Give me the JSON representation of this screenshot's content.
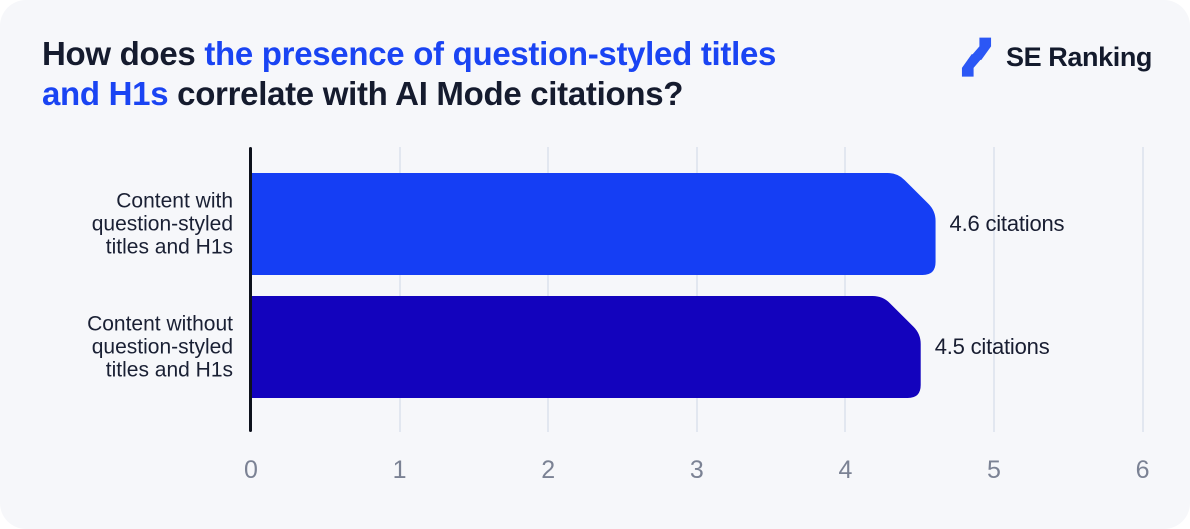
{
  "header": {
    "title_full": "How does the presence of question-styled titles and H1s correlate with AI Mode citations?",
    "title_lines": [
      [
        {
          "text": "How does ",
          "style": "dark"
        },
        {
          "text": "the presence of question-styled titles",
          "style": "accent"
        }
      ],
      [
        {
          "text": "and H1s",
          "style": "accent"
        },
        {
          "text": " correlate with AI Mode citations?",
          "style": "dark"
        }
      ]
    ],
    "logo_text": "SE Ranking"
  },
  "chart_data": {
    "type": "bar",
    "orientation": "horizontal",
    "title": "How does the presence of question-styled titles and H1s correlate with AI Mode citations?",
    "categories": [
      "Content with question-styled titles and H1s",
      "Content without question-styled titles and H1s"
    ],
    "category_lines": [
      [
        "Content with",
        "question-styled",
        "titles and H1s"
      ],
      [
        "Content without",
        "question-styled",
        "titles and H1s"
      ]
    ],
    "values": [
      4.6,
      4.5
    ],
    "value_labels": [
      "4.6 citations",
      "4.5 citations"
    ],
    "bar_colors": [
      "#153EF4",
      "#1303BD"
    ],
    "xlabel": "",
    "ylabel": "",
    "xlim": [
      0,
      6
    ],
    "x_ticks": [
      0,
      1,
      2,
      3,
      4,
      5,
      6
    ],
    "grid": true,
    "legend": "none"
  },
  "colors": {
    "accent_text": "#1A44F3",
    "dark_text": "#151B2E",
    "background": "#F6F7FA",
    "page_background": "#FFFFFF",
    "gridline": "#E2E7F0",
    "axis": "#0D111C",
    "tick_text": "#7B8294",
    "logo_blue": "#2B57F5"
  }
}
